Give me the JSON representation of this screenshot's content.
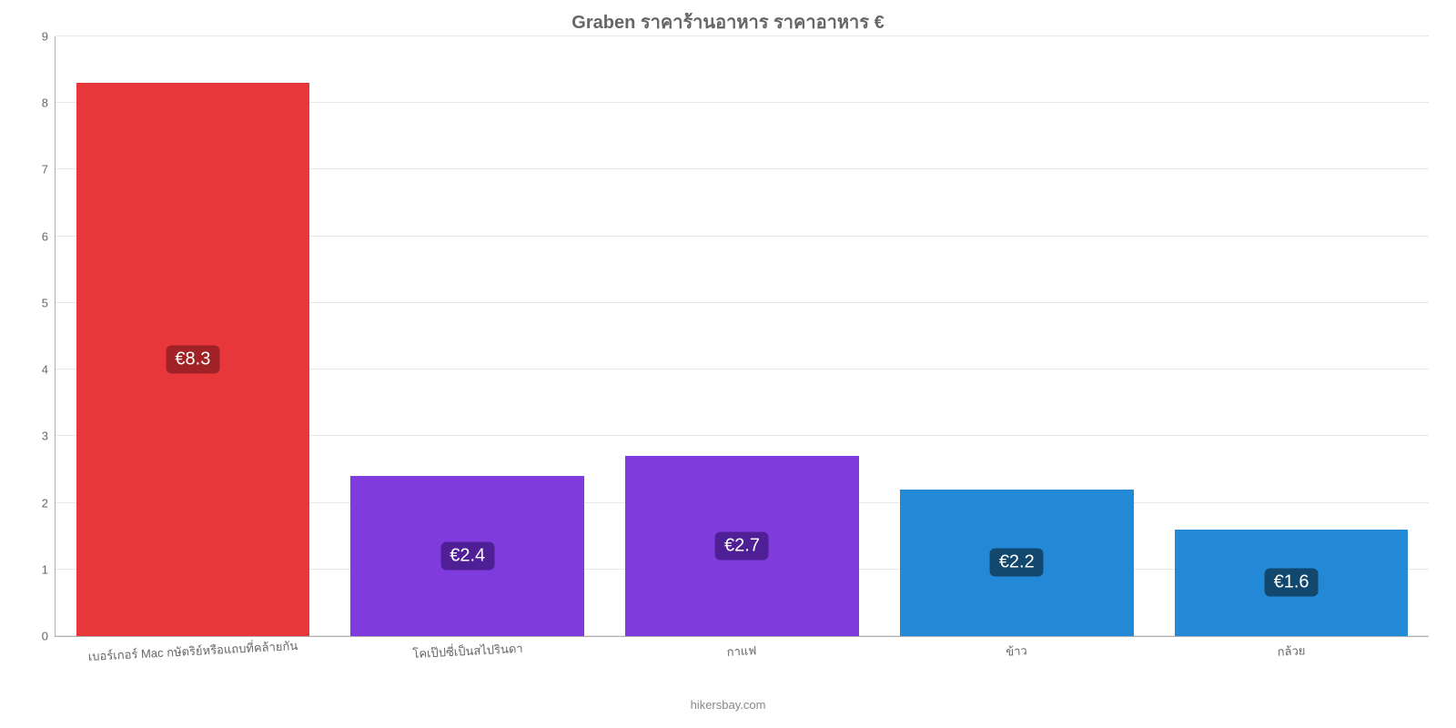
{
  "chart": {
    "type": "bar",
    "title": "Graben ราคาร้านอาหาร ราคาอาหาร €",
    "title_fontsize": 20,
    "title_color": "#666666",
    "background_color": "#ffffff",
    "grid_color": "#e8e8e8",
    "axis_color": "#b0b0b0",
    "ylim": [
      0,
      9
    ],
    "ytick_step": 1,
    "yticks": [
      "0",
      "1",
      "2",
      "3",
      "4",
      "5",
      "6",
      "7",
      "8",
      "9"
    ],
    "tick_fontsize": 13,
    "tick_color": "#666666",
    "bar_width": 0.85,
    "value_label_fontsize": 20,
    "value_label_color": "#ffffff",
    "value_badge_radius": 6,
    "categories": [
      "เบอร์เกอร์ Mac กษัตริย์หรือแถบที่คล้ายกัน",
      "โคเป๊ปซี่เป็นสไปรินดา",
      "กาแฟ",
      "ข้าว",
      "กล้วย"
    ],
    "values": [
      8.3,
      2.4,
      2.7,
      2.2,
      1.6
    ],
    "value_labels": [
      "€8.3",
      "€2.4",
      "€2.7",
      "€2.2",
      "€1.6"
    ],
    "bar_colors": [
      "#e8373b",
      "#7f3bde",
      "#7f3bde",
      "#2389d6",
      "#2389d6"
    ],
    "badge_colors": [
      "#a02226",
      "#4f1f96",
      "#4f1f96",
      "#12476e",
      "#12476e"
    ],
    "attribution": "hikersbay.com",
    "attribution_color": "#888888",
    "attribution_fontsize": 13,
    "x_label_rotation_deg": -3
  }
}
